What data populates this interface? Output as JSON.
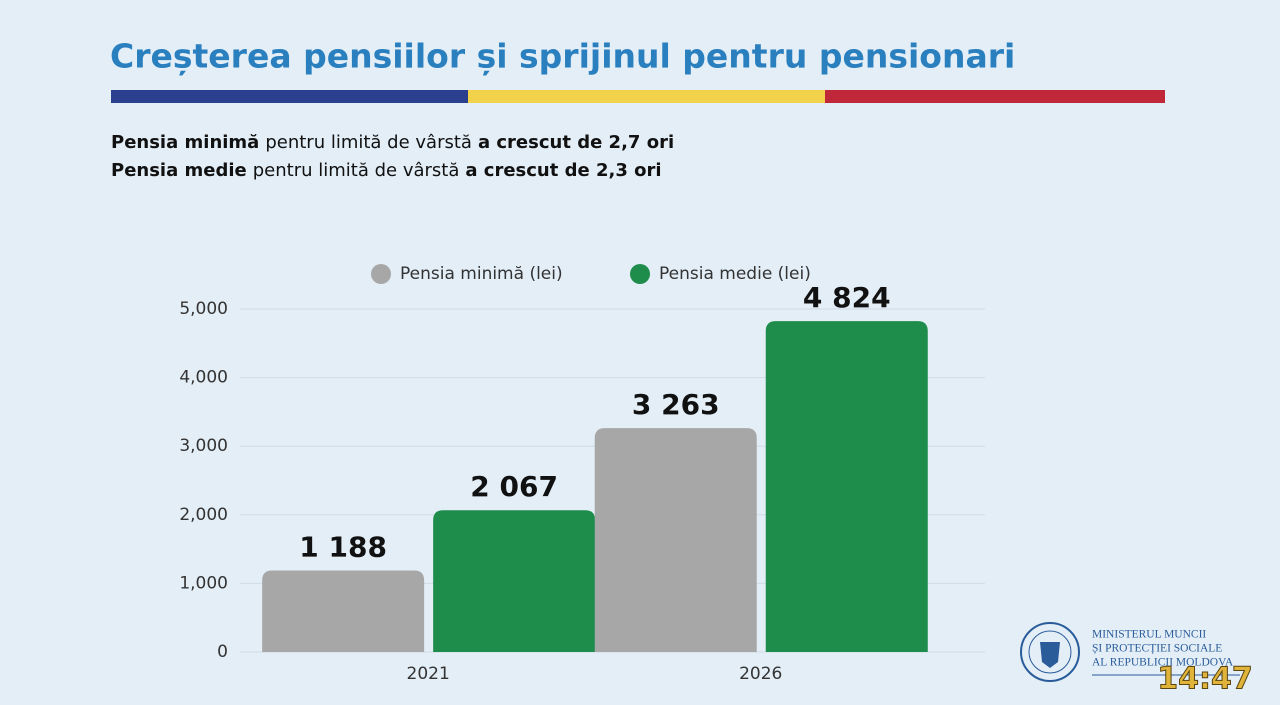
{
  "chart_data": {
    "type": "bar",
    "title": "Creșterea pensiilor și sprijinul pentru pensionari",
    "subtitle": [
      [
        "Pensia minimă",
        "pentru limită de vârstă",
        "a crescut de 2,7 ori"
      ],
      [
        "Pensia medie",
        "pentru limită de vârstă",
        "a crescut de 2,3 ori"
      ]
    ],
    "categories": [
      "2021",
      "2026"
    ],
    "series": [
      {
        "name": "Pensia minimă (lei)",
        "color": "#a7a7a7",
        "values": [
          1188,
          3263
        ],
        "value_labels": [
          "1 188",
          "3 263"
        ]
      },
      {
        "name": "Pensia medie (lei)",
        "color": "#1e8c4a",
        "values": [
          2067,
          4824
        ],
        "value_labels": [
          "2 067",
          "4 824"
        ]
      }
    ],
    "ylim": [
      0,
      5000
    ],
    "yticks": [
      0,
      {
        "value": 1000,
        "label": "1,000"
      },
      {
        "value": 2000,
        "label": "2,000"
      },
      {
        "value": 3000,
        "label": "3,000"
      },
      {
        "value": 4000,
        "label": "4,000"
      },
      {
        "value": 5000,
        "label": "5,000"
      }
    ],
    "grid": true,
    "legend": "top"
  },
  "footer": {
    "ministry": [
      "MINISTERUL MUNCII",
      "ȘI PROTECȚIEI SOCIALE",
      "AL REPUBLICII MOLDOVA"
    ],
    "clock": "14:47"
  }
}
